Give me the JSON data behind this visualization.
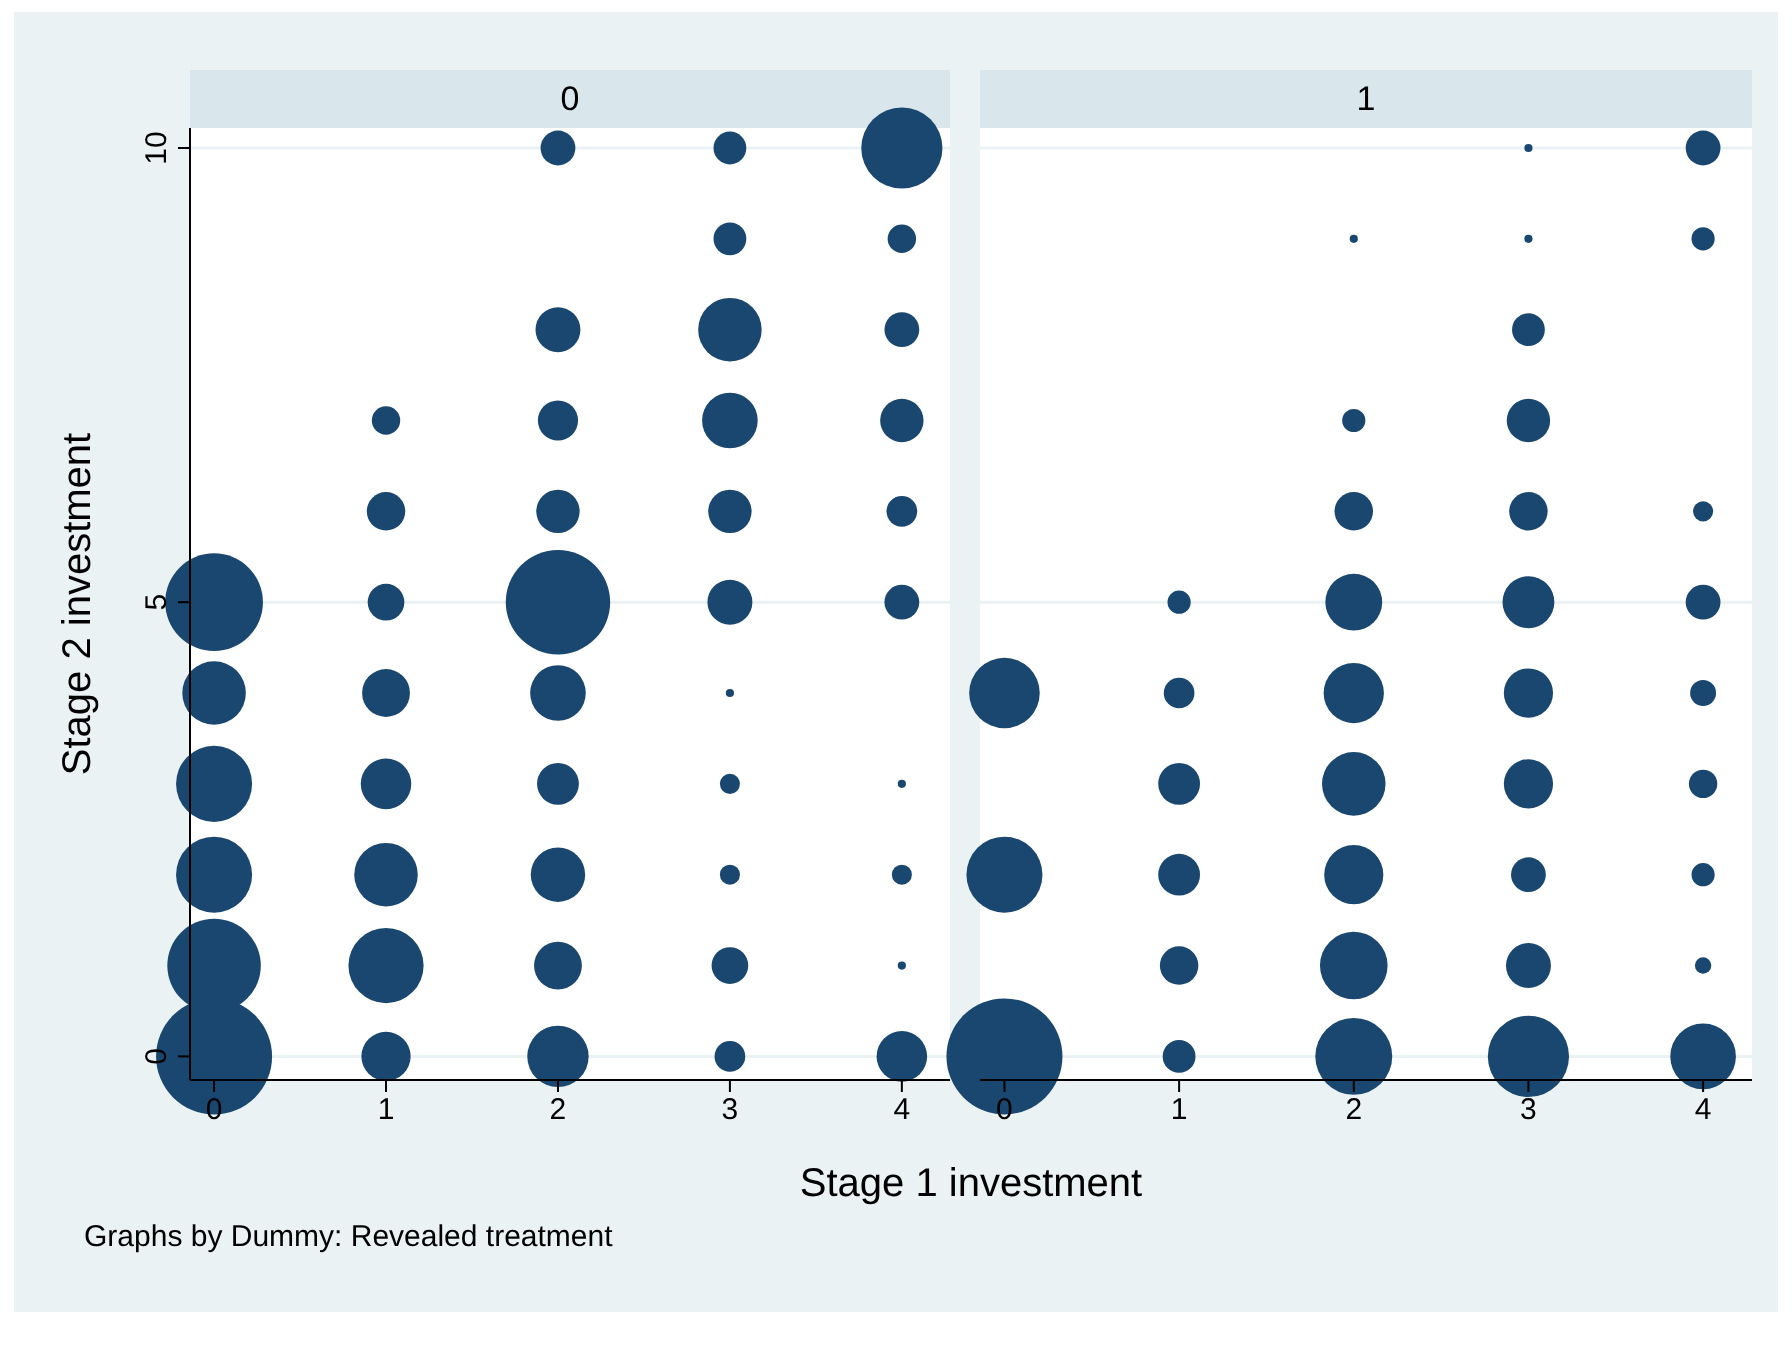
{
  "chart_data": [
    {
      "type": "bubble",
      "title": "0",
      "xlabel": "Stage 1 investment",
      "ylabel": "Stage 2 investment",
      "annotations": [
        "Graphs by Dummy: Revealed treatment"
      ],
      "xlim": [
        -0.14,
        4.28
      ],
      "ylim": [
        -0.26,
        10.22
      ],
      "xticks": [
        0,
        1,
        2,
        3,
        4
      ],
      "yticks": [
        0,
        5,
        10
      ],
      "grid": "y",
      "marker": "circle",
      "series": [
        {
          "color": "#1a476f",
          "x": [
            0,
            0,
            0,
            0,
            0,
            0,
            1,
            1,
            1,
            1,
            1,
            1,
            1,
            1,
            2,
            2,
            2,
            2,
            2,
            2,
            2,
            2,
            2,
            2,
            3,
            3,
            3,
            3,
            3,
            3,
            3,
            3,
            3,
            3,
            3,
            4,
            4,
            4,
            4,
            4,
            4,
            4,
            4,
            4,
            4
          ],
          "values": [
            0,
            1,
            2,
            3,
            4,
            5,
            0,
            1,
            2,
            3,
            4,
            5,
            6,
            7,
            0,
            1,
            2,
            3,
            4,
            5,
            6,
            7,
            8,
            10,
            0,
            1,
            2,
            3,
            4,
            5,
            6,
            7,
            8,
            9,
            10,
            0,
            1,
            2,
            3,
            5,
            6,
            7,
            8,
            9,
            10
          ],
          "sizes": [
            1,
            0.65,
            0.43,
            0.43,
            0.3,
            0.71,
            0.18,
            0.42,
            0.3,
            0.19,
            0.17,
            0.1,
            0.11,
            0.06,
            0.28,
            0.17,
            0.22,
            0.13,
            0.23,
            0.81,
            0.14,
            0.12,
            0.15,
            0.09,
            0.07,
            0.1,
            0.03,
            0.03,
            0.005,
            0.15,
            0.14,
            0.23,
            0.3,
            0.08,
            0.08,
            0.19,
            0.005,
            0.03,
            0.005,
            0.09,
            0.07,
            0.14,
            0.09,
            0.06,
            0.49
          ]
        }
      ]
    },
    {
      "type": "bubble",
      "title": "1",
      "xlim": [
        -0.14,
        4.28
      ],
      "ylim": [
        -0.26,
        10.22
      ],
      "xticks": [
        0,
        1,
        2,
        3,
        4
      ],
      "yticks": [
        0,
        5,
        10
      ],
      "tick_labels": "x",
      "grid": "y",
      "marker": "circle",
      "series": [
        {
          "color": "#1a476f",
          "x": [
            0,
            0,
            0,
            1,
            1,
            1,
            1,
            1,
            1,
            2,
            2,
            2,
            2,
            2,
            2,
            2,
            2,
            2,
            3,
            3,
            3,
            3,
            3,
            3,
            3,
            3,
            3,
            3,
            3,
            4,
            4,
            4,
            4,
            4,
            4,
            4,
            4,
            4
          ],
          "values": [
            0,
            2,
            4,
            0,
            1,
            2,
            3,
            4,
            5,
            0,
            1,
            2,
            3,
            4,
            5,
            6,
            7,
            9,
            0,
            1,
            2,
            3,
            4,
            5,
            6,
            7,
            8,
            9,
            10,
            0,
            1,
            2,
            3,
            4,
            5,
            6,
            9,
            10
          ],
          "sizes": [
            1,
            0.43,
            0.37,
            0.08,
            0.11,
            0.13,
            0.13,
            0.07,
            0.04,
            0.44,
            0.34,
            0.26,
            0.3,
            0.27,
            0.24,
            0.11,
            0.04,
            0.005,
            0.49,
            0.15,
            0.09,
            0.18,
            0.18,
            0.2,
            0.11,
            0.14,
            0.08,
            0.005,
            0.005,
            0.32,
            0.02,
            0.04,
            0.06,
            0.05,
            0.09,
            0.03,
            0.04,
            0.09
          ]
        }
      ]
    }
  ]
}
